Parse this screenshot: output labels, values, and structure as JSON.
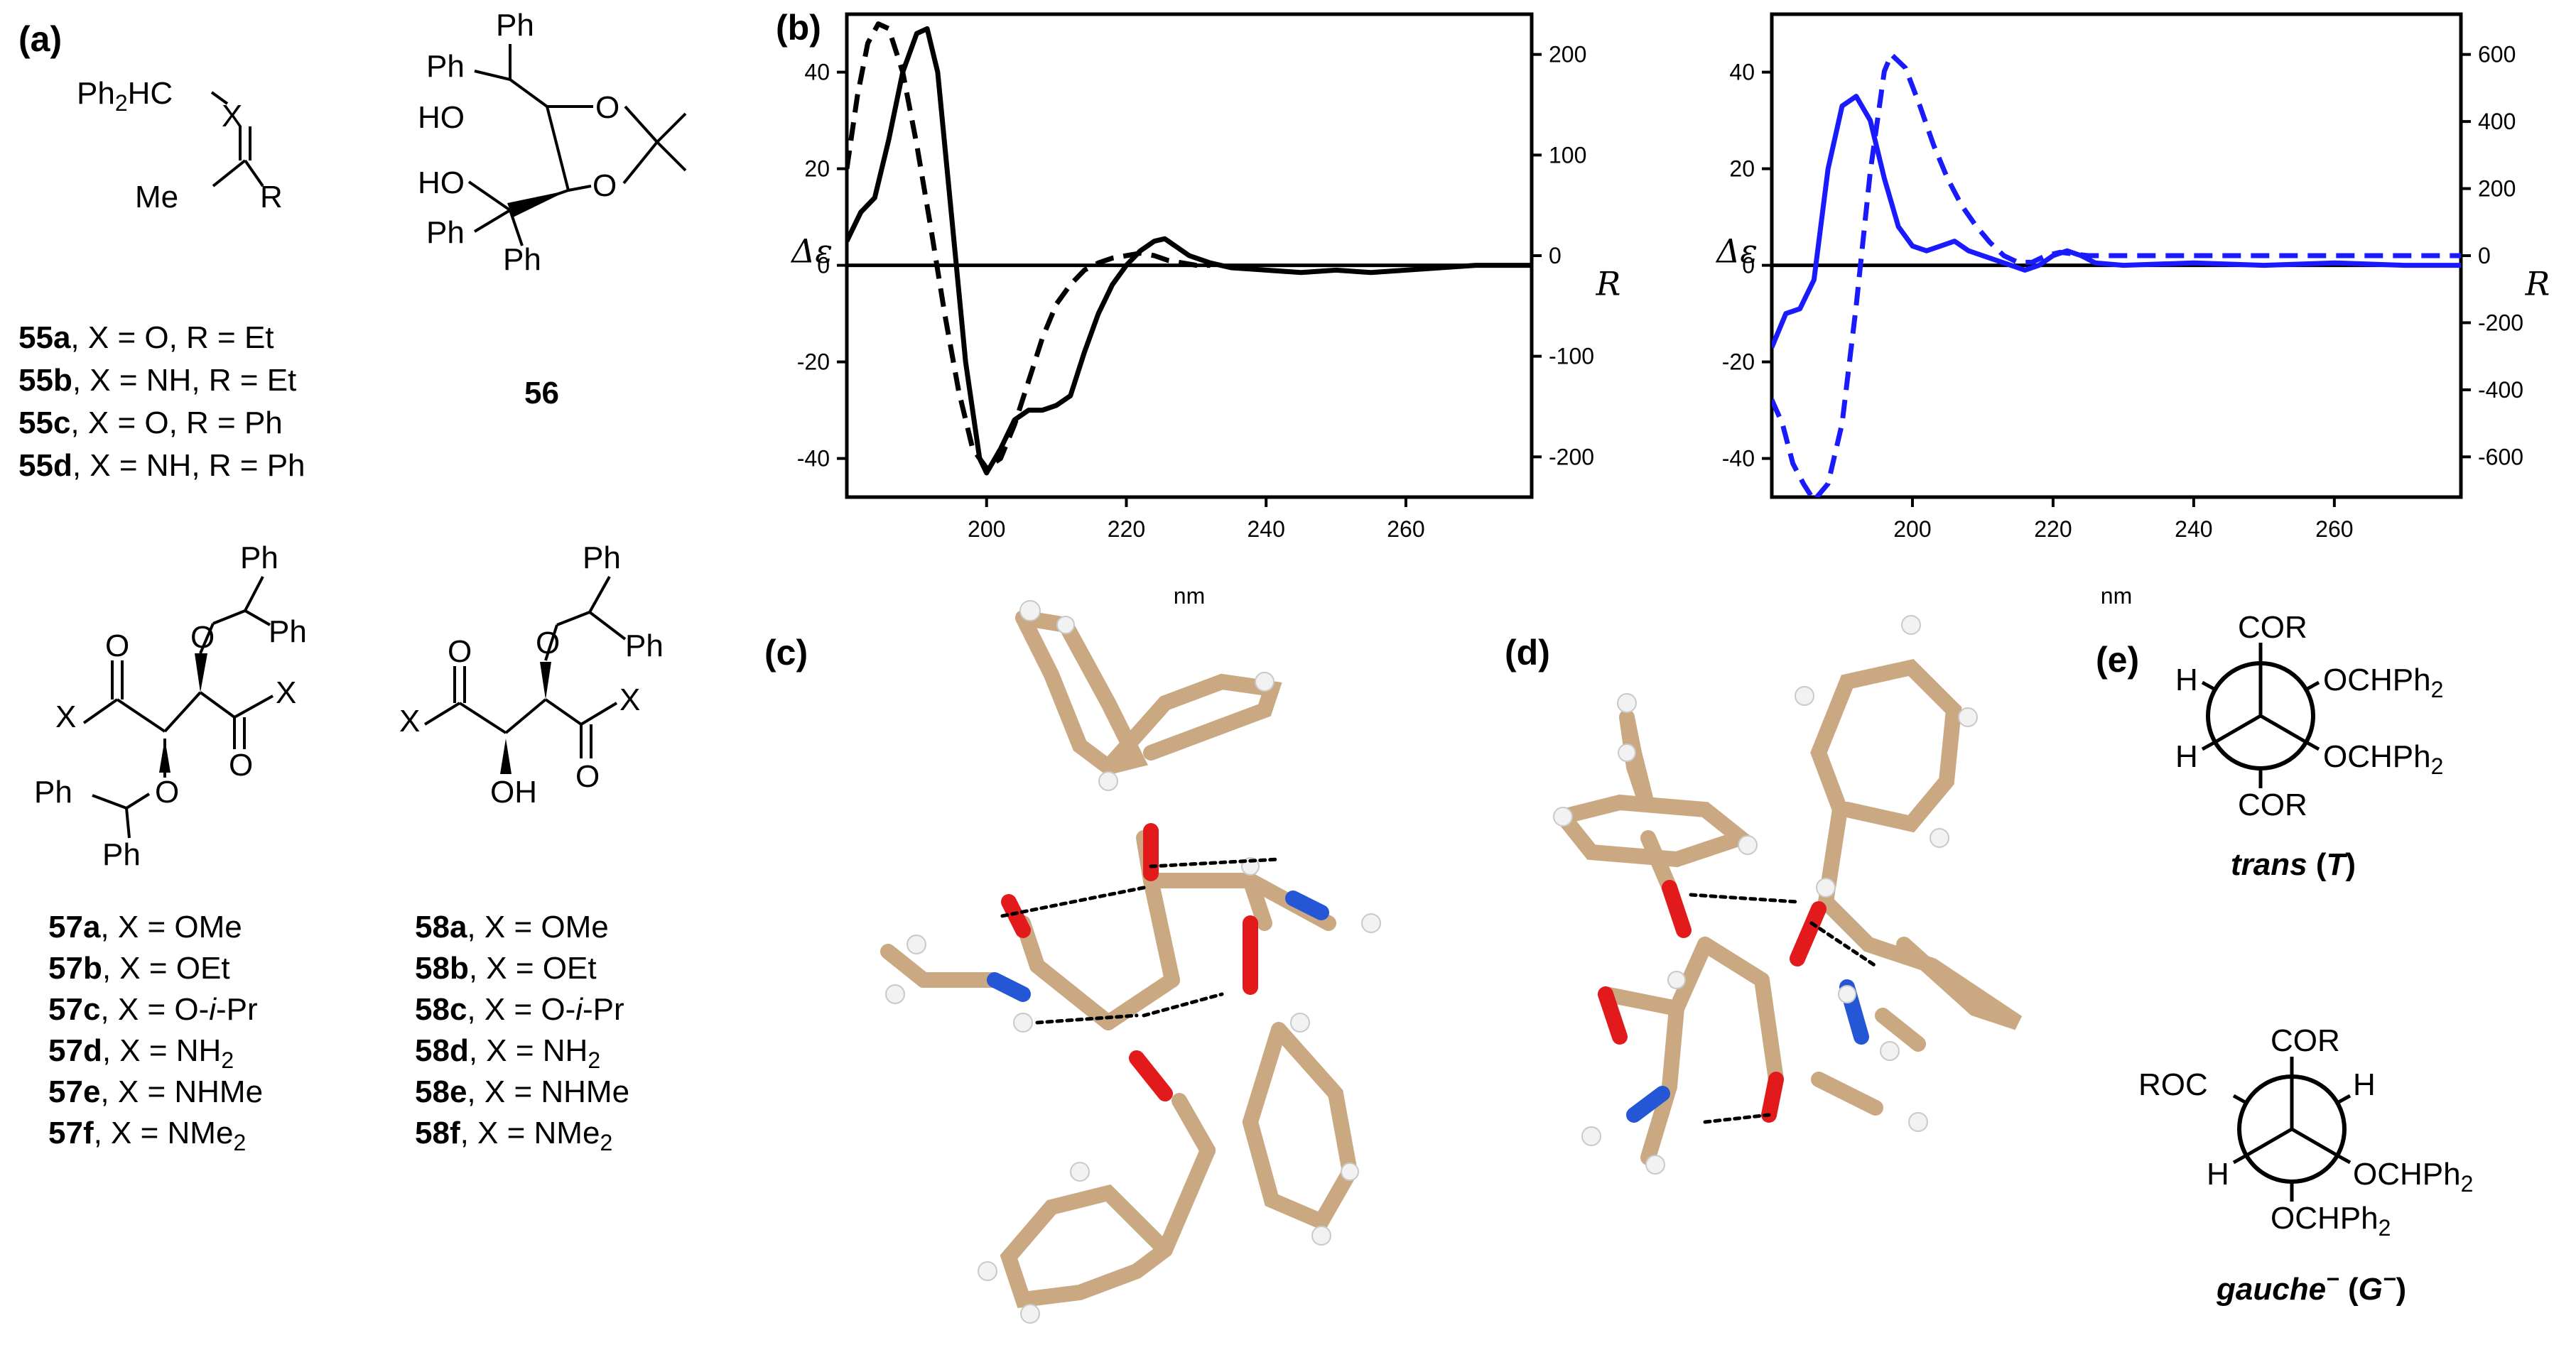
{
  "panels": {
    "a": "(a)",
    "b": "(b)",
    "c": "(c)",
    "d": "(d)",
    "e": "(e)"
  },
  "compound55": {
    "ph2hc": "Ph",
    "ph2hc_sub": "2",
    "ph2hc_tail": "HC",
    "x": "X",
    "me": "Me",
    "r": "R",
    "rows": [
      {
        "id": "55a",
        "text": ", X = O, R = Et"
      },
      {
        "id": "55b",
        "text": ", X = NH, R = Et"
      },
      {
        "id": "55c",
        "text": ", X = O, R = Ph"
      },
      {
        "id": "55d",
        "text": ", X = NH, R = Ph"
      }
    ]
  },
  "compound56": {
    "label": "56",
    "ph": "Ph",
    "ho": "HO",
    "o": "O"
  },
  "compound57": {
    "ph": "Ph",
    "o": "O",
    "x": "X",
    "rows": [
      {
        "id": "57a",
        "text": ",  X = OMe"
      },
      {
        "id": "57b",
        "text": ",  X = OEt"
      },
      {
        "id": "57c",
        "text": ",  X = O-",
        "ital": "i",
        "tail": "-Pr"
      },
      {
        "id": "57d",
        "text": ",  X = NH",
        "sub": "2"
      },
      {
        "id": "57e",
        "text": ",  X = NHMe"
      },
      {
        "id": "57f",
        "text": ",   X = NMe",
        "sub": "2"
      }
    ]
  },
  "compound58": {
    "ph": "Ph",
    "o": "O",
    "x": "X",
    "oh": "OH",
    "rows": [
      {
        "id": "58a",
        "text": ",  X = OMe"
      },
      {
        "id": "58b",
        "text": ",  X = OEt"
      },
      {
        "id": "58c",
        "text": ",  X = O-",
        "ital": "i",
        "tail": "-Pr"
      },
      {
        "id": "58d",
        "text": ",  X = NH",
        "sub": "2"
      },
      {
        "id": "58e",
        "text": ",  X = NHMe"
      },
      {
        "id": "58f",
        "text": ",   X = NMe",
        "sub": "2"
      }
    ]
  },
  "chart_data": [
    {
      "type": "line",
      "xlabel": "nm",
      "ylabel": "Δε",
      "y2label": "R",
      "xlim": [
        180,
        278
      ],
      "ylim": [
        -48,
        52
      ],
      "y2lim": [
        -240,
        240
      ],
      "xticks": [
        200,
        220,
        240,
        260
      ],
      "yticks": [
        -40,
        -20,
        0,
        20,
        40
      ],
      "y2ticks": [
        -200,
        -100,
        0,
        100,
        200
      ],
      "color": "#000000",
      "series": [
        {
          "style": "solid",
          "axis": "left",
          "x": [
            180,
            182,
            184,
            186,
            188,
            190,
            191.5,
            193,
            195,
            197,
            199,
            200,
            202,
            204,
            206,
            208,
            210,
            212,
            214,
            216,
            218,
            220,
            222,
            224,
            225.5,
            227,
            229,
            232,
            235,
            240,
            245,
            250,
            255,
            260,
            265,
            270,
            278
          ],
          "y": [
            5,
            11,
            14,
            26,
            40,
            48,
            49,
            40,
            10,
            -20,
            -40,
            -43,
            -38,
            -32,
            -30,
            -30,
            -29,
            -27,
            -18,
            -10,
            -4,
            0,
            3,
            5,
            5.5,
            4,
            2,
            0.5,
            -0.5,
            -1,
            -1.5,
            -1,
            -1.5,
            -1,
            -0.5,
            0,
            0
          ]
        },
        {
          "style": "dashed",
          "axis": "left",
          "x": [
            180,
            181.5,
            183,
            184.5,
            186,
            188,
            190,
            192,
            194,
            196,
            198,
            200,
            202,
            204,
            206,
            208,
            210,
            212,
            214,
            216,
            218,
            220,
            222,
            224,
            226,
            228,
            230,
            232
          ],
          "y": [
            20,
            35,
            46,
            50,
            49,
            40,
            25,
            8,
            -10,
            -26,
            -38,
            -42,
            -40,
            -33,
            -24,
            -15,
            -8,
            -4,
            -1,
            0.5,
            1.5,
            2,
            2.5,
            2,
            1,
            0.5,
            0,
            0
          ]
        }
      ]
    },
    {
      "type": "line",
      "xlabel": "nm",
      "ylabel": "Δε",
      "y2label": "R",
      "xlim": [
        180,
        278
      ],
      "ylim": [
        -48,
        52
      ],
      "y2lim": [
        -720,
        720
      ],
      "xticks": [
        200,
        220,
        240,
        260
      ],
      "yticks": [
        -40,
        -20,
        0,
        20,
        40
      ],
      "y2ticks": [
        -600,
        -400,
        -200,
        0,
        200,
        400,
        600
      ],
      "color": "#1a1aff",
      "series": [
        {
          "style": "solid",
          "axis": "left",
          "x": [
            180,
            182,
            184,
            186,
            188,
            190,
            192,
            194,
            196,
            198,
            200,
            202,
            204,
            206,
            208,
            210,
            212,
            214,
            216,
            218,
            220,
            222,
            224,
            226,
            230,
            240,
            250,
            260,
            270,
            278
          ],
          "y": [
            -17,
            -10,
            -9,
            -3,
            20,
            33,
            35,
            30,
            18,
            8,
            4,
            3,
            4,
            5,
            3,
            2,
            1,
            0,
            -1,
            0,
            2,
            3,
            2,
            0.5,
            0,
            0.5,
            0,
            0.5,
            0,
            0
          ]
        },
        {
          "style": "dashed",
          "axis": "right",
          "x": [
            180,
            181.5,
            183,
            184.5,
            186,
            188,
            190,
            192,
            194,
            196,
            197,
            199,
            201,
            203,
            205,
            207,
            209,
            211,
            213,
            215,
            217,
            219,
            221,
            223,
            225,
            230,
            240,
            260,
            278
          ],
          "y": [
            -430,
            -500,
            -620,
            -680,
            -730,
            -680,
            -500,
            -150,
            250,
            550,
            600,
            560,
            450,
            330,
            230,
            150,
            90,
            40,
            0,
            -20,
            -20,
            0,
            10,
            5,
            0,
            0,
            0,
            0,
            0
          ]
        }
      ]
    }
  ],
  "newman": {
    "trans_label": "trans",
    "trans_sym": "T",
    "gauche_label": "gauche",
    "gauche_sym": "G",
    "sup": "−",
    "cor": "COR",
    "roc": "ROC",
    "h": "H",
    "ochph": "OCHPh",
    "sub2": "2"
  }
}
